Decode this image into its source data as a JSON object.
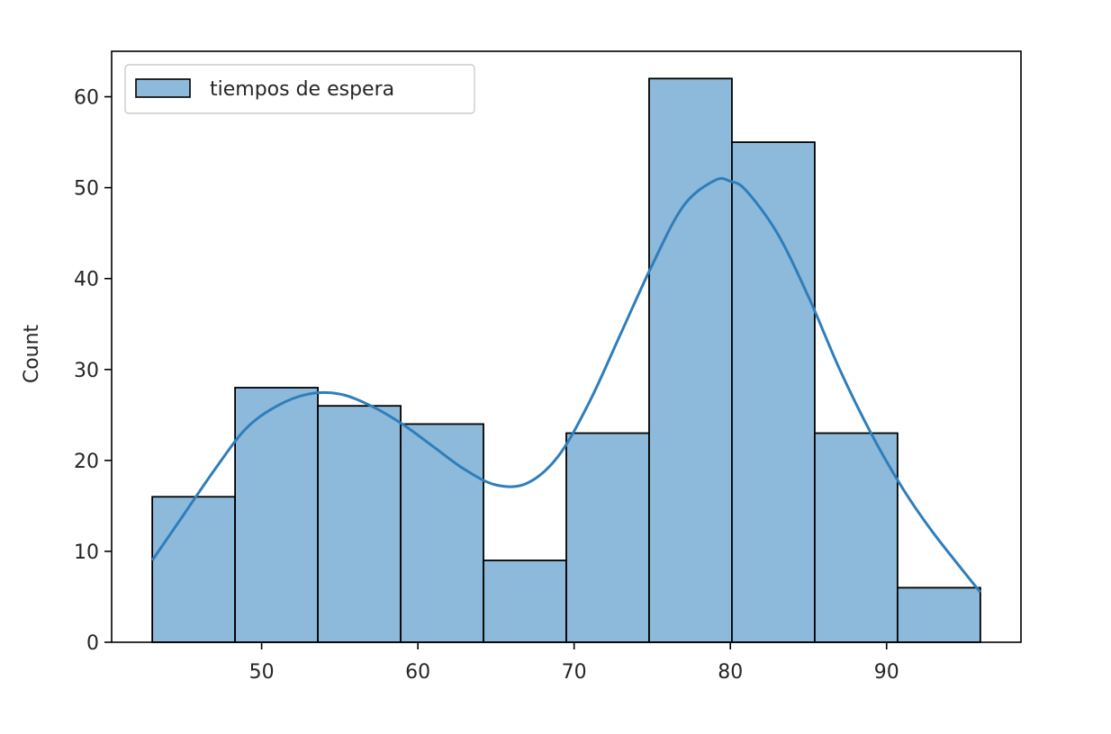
{
  "chart_data": {
    "type": "bar",
    "title": "",
    "xlabel": "",
    "ylabel": "Count",
    "xlim": [
      40.4,
      98.6
    ],
    "ylim": [
      0,
      65
    ],
    "xticks": [
      50,
      60,
      70,
      80,
      90
    ],
    "yticks": [
      0,
      10,
      20,
      30,
      40,
      50,
      60
    ],
    "grid": false,
    "legend_position": "top-left",
    "bar_color": "#8db9da",
    "edge_color": "#000000",
    "kde_color": "#2e7ebc",
    "series": [
      {
        "name": "tiempos de espera",
        "bins": [
          {
            "start": 43.0,
            "end": 48.3,
            "count": 16
          },
          {
            "start": 48.3,
            "end": 53.6,
            "count": 28
          },
          {
            "start": 53.6,
            "end": 58.9,
            "count": 26
          },
          {
            "start": 58.9,
            "end": 64.2,
            "count": 24
          },
          {
            "start": 64.2,
            "end": 69.5,
            "count": 9
          },
          {
            "start": 69.5,
            "end": 74.8,
            "count": 23
          },
          {
            "start": 74.8,
            "end": 80.1,
            "count": 62
          },
          {
            "start": 80.1,
            "end": 85.4,
            "count": 55
          },
          {
            "start": 85.4,
            "end": 90.7,
            "count": 23
          },
          {
            "start": 90.7,
            "end": 96.0,
            "count": 6
          }
        ],
        "kde": {
          "x": [
            43,
            45,
            47,
            49,
            51,
            53,
            55,
            57,
            59,
            61,
            63,
            65,
            67,
            69,
            71,
            73,
            75,
            77,
            79,
            80,
            81,
            83,
            85,
            87,
            89,
            91,
            93,
            96
          ],
          "y": [
            9,
            14,
            19,
            23.5,
            26,
            27.3,
            27.3,
            26,
            24,
            21.5,
            19,
            17.3,
            17.5,
            20.5,
            26.5,
            34,
            41.5,
            48,
            50.8,
            50.7,
            49.7,
            45,
            38,
            30,
            23,
            17,
            12,
            5.5
          ]
        }
      }
    ]
  }
}
